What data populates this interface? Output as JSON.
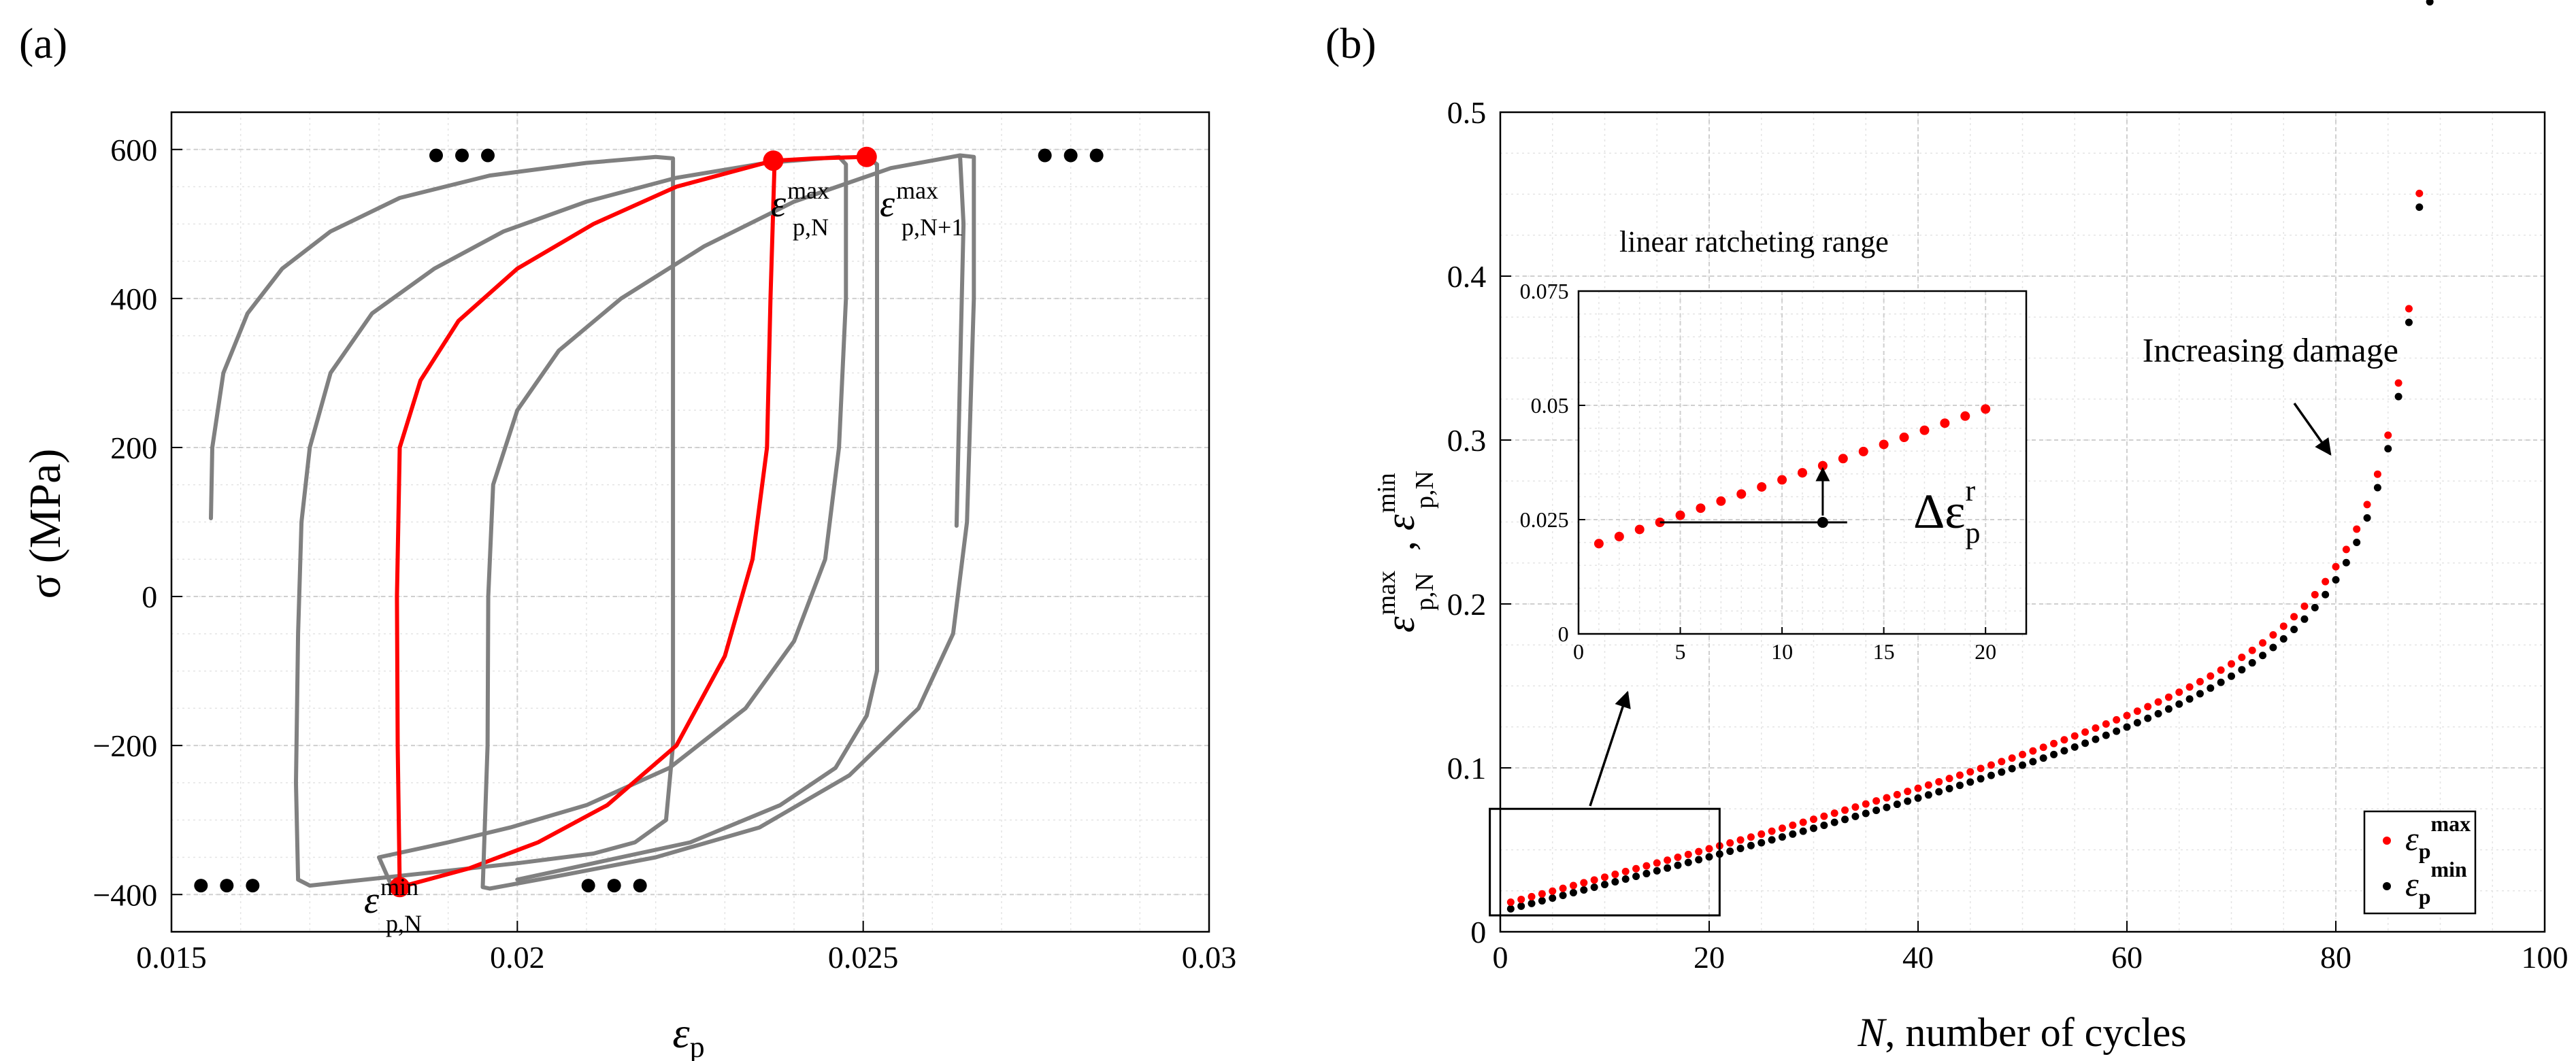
{
  "chart_data": [
    {
      "panel": "(a)",
      "type": "line",
      "xlabel": "ε",
      "xlabel_sub": "p",
      "ylabel": "σ (MPa)",
      "xlim": [
        0.015,
        0.03
      ],
      "ylim": [
        -450,
        650
      ],
      "xticks": [
        0.015,
        0.02,
        0.025,
        0.03
      ],
      "xtick_labels": [
        "0.015",
        "0.02",
        "0.025",
        "0.03"
      ],
      "yticks": [
        -400,
        -200,
        0,
        200,
        400,
        600
      ],
      "ytick_labels": [
        "−400",
        "−200",
        "0",
        "200",
        "400",
        "600"
      ],
      "grid": true,
      "colors": {
        "highlight": "#ff0000",
        "cycles": "#808080",
        "marker": "#ff0000",
        "dots": "#000000"
      },
      "series": [
        {
          "name": "cycle-prev-2",
          "highlight": false,
          "points": [
            [
              0.01557,
              105
            ],
            [
              0.01559,
              200
            ],
            [
              0.01575,
              300
            ],
            [
              0.0161,
              380
            ],
            [
              0.0166,
              440
            ],
            [
              0.0173,
              490
            ],
            [
              0.0183,
              535
            ],
            [
              0.0196,
              565
            ],
            [
              0.021,
              582
            ],
            [
              0.022,
              590
            ],
            [
              0.02225,
              588
            ],
            [
              0.02225,
              400
            ],
            [
              0.02225,
              100
            ],
            [
              0.02225,
              -200
            ],
            [
              0.02215,
              -300
            ],
            [
              0.0217,
              -330
            ],
            [
              0.0211,
              -345
            ],
            [
              0.02,
              -358
            ],
            [
              0.019,
              -368
            ],
            [
              0.018,
              -378
            ],
            [
              0.017,
              -388
            ],
            [
              0.01683,
              -380
            ],
            [
              0.0168,
              -250
            ],
            [
              0.01683,
              -50
            ],
            [
              0.01688,
              100
            ],
            [
              0.017,
              200
            ]
          ]
        },
        {
          "name": "cycle-prev-1",
          "highlight": false,
          "points": [
            [
              0.017,
              200
            ],
            [
              0.0173,
              300
            ],
            [
              0.0179,
              380
            ],
            [
              0.0188,
              440
            ],
            [
              0.0198,
              490
            ],
            [
              0.021,
              530
            ],
            [
              0.0223,
              562
            ],
            [
              0.0236,
              582
            ],
            [
              0.02465,
              590
            ],
            [
              0.02475,
              580
            ],
            [
              0.02475,
              400
            ],
            [
              0.02465,
              200
            ],
            [
              0.02445,
              50
            ],
            [
              0.024,
              -60
            ],
            [
              0.0233,
              -150
            ],
            [
              0.0222,
              -230
            ],
            [
              0.021,
              -280
            ],
            [
              0.0199,
              -310
            ],
            [
              0.019,
              -330
            ],
            [
              0.018,
              -350
            ],
            [
              0.0182,
              -392
            ],
            [
              0.0183,
              -390
            ]
          ]
        },
        {
          "name": "cycle-N",
          "highlight": true,
          "points": [
            [
              0.0183,
              -390
            ],
            [
              0.01827,
              -200
            ],
            [
              0.01826,
              0
            ],
            [
              0.0183,
              200
            ],
            [
              0.0186,
              290
            ],
            [
              0.01915,
              370
            ],
            [
              0.02,
              440
            ],
            [
              0.0211,
              500
            ],
            [
              0.0223,
              550
            ],
            [
              0.0237,
              585
            ],
            [
              0.02372,
              585
            ],
            [
              0.02366,
              400
            ],
            [
              0.02361,
              200
            ],
            [
              0.0234,
              50
            ],
            [
              0.023,
              -80
            ],
            [
              0.0223,
              -200
            ],
            [
              0.0213,
              -280
            ],
            [
              0.0203,
              -330
            ],
            [
              0.0193,
              -365
            ],
            [
              0.0183,
              -390
            ]
          ]
        },
        {
          "name": "cycle-N-plus-1-red-top",
          "highlight": true,
          "points": [
            [
              0.02372,
              585
            ],
            [
              0.0243,
              588
            ],
            [
              0.025,
              590
            ],
            [
              0.02505,
              590
            ]
          ]
        },
        {
          "name": "cycle-next-1",
          "highlight": false,
          "points": [
            [
              0.0195,
              -390
            ],
            [
              0.01957,
              -200
            ],
            [
              0.01958,
              0
            ],
            [
              0.01965,
              150
            ],
            [
              0.02,
              250
            ],
            [
              0.0206,
              330
            ],
            [
              0.0215,
              400
            ],
            [
              0.0227,
              470
            ],
            [
              0.024,
              530
            ],
            [
              0.0254,
              575
            ],
            [
              0.0264,
              592
            ],
            [
              0.0266,
              590
            ],
            [
              0.0266,
              400
            ],
            [
              0.0265,
              100
            ],
            [
              0.0263,
              -50
            ],
            [
              0.0258,
              -150
            ],
            [
              0.0248,
              -240
            ],
            [
              0.0235,
              -310
            ],
            [
              0.022,
              -350
            ],
            [
              0.0206,
              -375
            ],
            [
              0.0196,
              -392
            ],
            [
              0.0195,
              -390
            ]
          ]
        },
        {
          "name": "cycle-next-2",
          "highlight": false,
          "points": [
            [
              0.02505,
              590
            ],
            [
              0.0252,
              580
            ],
            [
              0.0252,
              400
            ],
            [
              0.0252,
              100
            ],
            [
              0.0252,
              -100
            ],
            [
              0.02505,
              -160
            ],
            [
              0.0246,
              -230
            ],
            [
              0.0238,
              -280
            ],
            [
              0.0225,
              -330
            ],
            [
              0.021,
              -360
            ],
            [
              0.02,
              -380
            ]
          ]
        },
        {
          "name": "cycle-tail",
          "highlight": false,
          "points": [
            [
              0.0264,
              592
            ],
            [
              0.02645,
              500
            ],
            [
              0.0264,
              300
            ],
            [
              0.02635,
              95
            ]
          ]
        }
      ],
      "markers": [
        [
          0.0183,
          -390
        ],
        [
          0.0237,
          585
        ],
        [
          0.02505,
          590
        ]
      ],
      "dot_groups": [
        [
          0.0158,
          -388
        ],
        [
          0.0214,
          -388
        ],
        [
          0.0192,
          592
        ],
        [
          0.028,
          592
        ]
      ],
      "annotations": [
        {
          "text": "ε",
          "sup": "max",
          "sub": "p,N"
        },
        {
          "text": "ε",
          "sup": "max",
          "sub": "p,N+1"
        },
        {
          "text": "ε",
          "sup": "min",
          "sub": "p,N"
        }
      ]
    },
    {
      "panel": "(b)",
      "type": "scatter",
      "xlabel": "N, number of cycles",
      "xlabel_var": "N",
      "xlabel_rest": ", number of cycles",
      "ylabel_terms": [
        {
          "text": "ε",
          "sup": "max",
          "sub": "p,N"
        },
        {
          "text": "ε",
          "sup": "min",
          "sub": "p,N"
        }
      ],
      "xlim": [
        0,
        100
      ],
      "ylim": [
        0,
        0.5
      ],
      "xticks": [
        0,
        20,
        40,
        60,
        80,
        100
      ],
      "xtick_labels": [
        "0",
        "20",
        "40",
        "60",
        "80",
        "100"
      ],
      "yticks": [
        0,
        0.1,
        0.2,
        0.3,
        0.4,
        0.5
      ],
      "ytick_labels": [
        "0",
        "0.1",
        "0.2",
        "0.3",
        "0.4",
        "0.5"
      ],
      "grid": true,
      "colors": {
        "max": "#ff0000",
        "min": "#000000"
      },
      "series_rule": {
        "n_from": 1,
        "n_to": 90,
        "max": {
          "a": 0.0165,
          "b": 0.00155,
          "c": 0.013,
          "d": 0.012,
          "e": 0.006
        },
        "min": {
          "a": 0.0125,
          "b": 0.0015,
          "c": 0.013,
          "d": 0.012,
          "e": 0.006
        }
      },
      "series": [
        {
          "name": "max",
          "label": "ε",
          "label_sub": "p",
          "label_sup": "max"
        },
        {
          "name": "min",
          "label": "ε",
          "label_sub": "p",
          "label_sup": "min"
        }
      ],
      "annotations": [
        {
          "text": "Increasing damage",
          "x": 62,
          "y": 0.348
        }
      ],
      "zoom_box": {
        "x": [
          -1,
          21
        ],
        "y": [
          0.01,
          0.075
        ]
      },
      "inset": {
        "title": "linear ratcheting range",
        "xlim": [
          0,
          22
        ],
        "ylim": [
          0,
          0.075
        ],
        "xticks": [
          0,
          5,
          10,
          15,
          20
        ],
        "xtick_labels": [
          "0",
          "5",
          "10",
          "15",
          "20"
        ],
        "yticks": [
          0,
          0.025,
          0.05,
          0.075
        ],
        "ytick_labels": [
          "0",
          "0.025",
          "0.05",
          "0.075"
        ],
        "series_rule": {
          "n_from": 1,
          "n_to": 20,
          "a": 0.0182,
          "b": 0.00155
        },
        "delta_label": "Δε",
        "delta_sub": "p",
        "delta_sup": "r"
      },
      "legend": "bottom-right"
    }
  ]
}
